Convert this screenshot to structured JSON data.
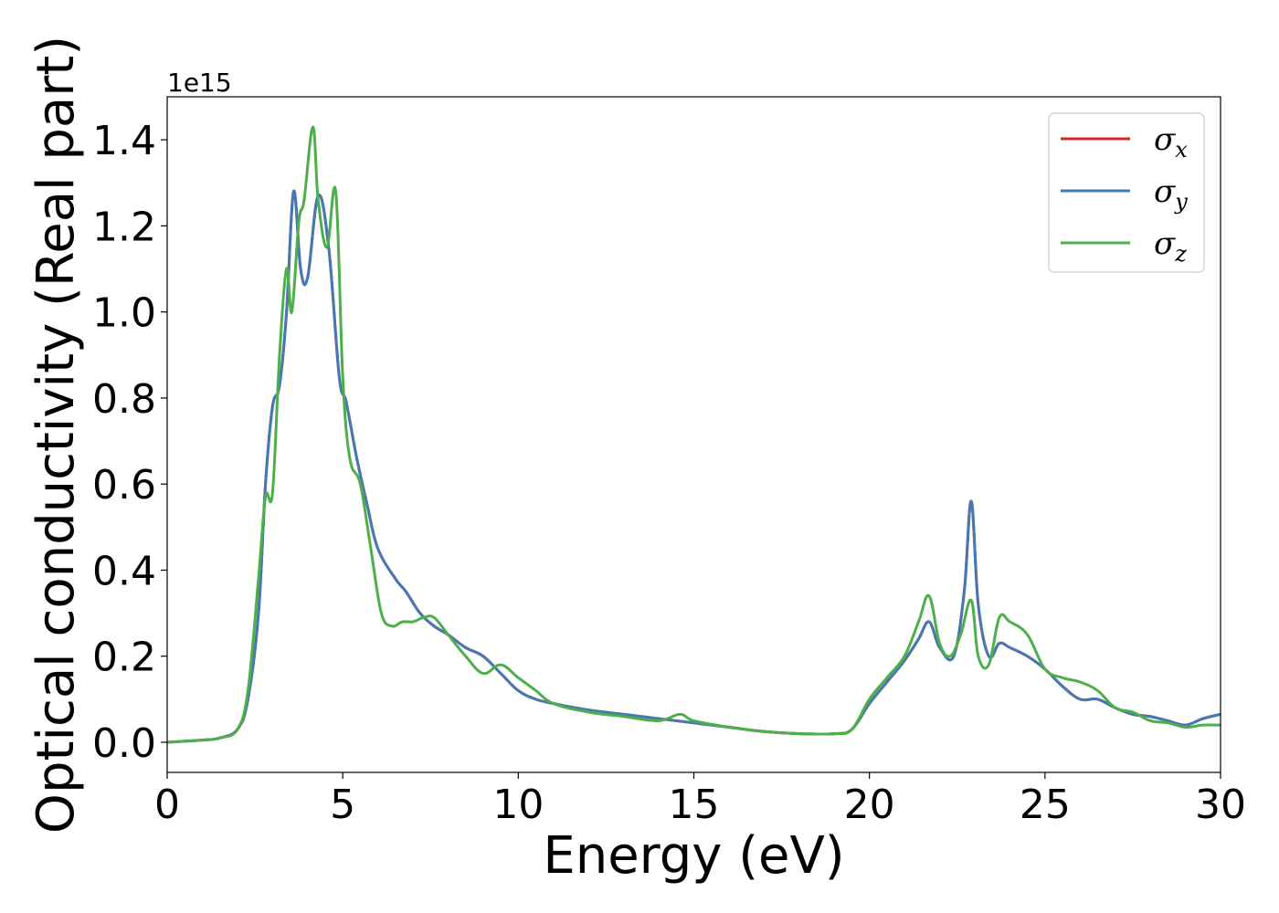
{
  "chart_data": {
    "type": "line",
    "title": "",
    "xlabel": "Energy (eV)",
    "ylabel": "Optical conductivity (Real part)",
    "y_offset_label": "1e15",
    "xlim": [
      0,
      30
    ],
    "ylim": [
      -0.07,
      1.5
    ],
    "grid": false,
    "legend_position": "top-right",
    "x_ticks": [
      0,
      5,
      10,
      15,
      20,
      25,
      30
    ],
    "x_tick_labels": [
      "0",
      "5",
      "10",
      "15",
      "20",
      "25",
      "30"
    ],
    "y_ticks": [
      0.0,
      0.2,
      0.4,
      0.6,
      0.8,
      1.0,
      1.2,
      1.4
    ],
    "y_tick_labels": [
      "0.0",
      "0.2",
      "0.4",
      "0.6",
      "0.8",
      "1.0",
      "1.2",
      "1.4"
    ],
    "series": [
      {
        "name": "σx",
        "legend_base": "σ",
        "legend_sub": "x",
        "color": "#d62728",
        "x": [
          0,
          1,
          1.5,
          2,
          2.3,
          2.6,
          2.8,
          3.0,
          3.2,
          3.4,
          3.6,
          3.8,
          4.0,
          4.3,
          4.6,
          4.9,
          5.1,
          5.4,
          5.7,
          6.0,
          6.5,
          6.8,
          7.2,
          7.6,
          8.0,
          8.5,
          9.0,
          9.5,
          10.0,
          10.5,
          11.0,
          12.0,
          13.0,
          14.0,
          15.0,
          16.0,
          17.0,
          18.0,
          19.0,
          19.5,
          20.0,
          20.5,
          21.0,
          21.4,
          21.7,
          22.0,
          22.4,
          22.7,
          22.9,
          23.1,
          23.4,
          23.7,
          24.0,
          24.5,
          25.0,
          25.5,
          26.0,
          26.5,
          27.0,
          27.5,
          28.0,
          28.5,
          29.0,
          29.5,
          30.0
        ],
        "values": [
          0.0,
          0.005,
          0.01,
          0.03,
          0.1,
          0.3,
          0.6,
          0.78,
          0.83,
          1.0,
          1.28,
          1.1,
          1.08,
          1.27,
          1.15,
          0.85,
          0.79,
          0.66,
          0.55,
          0.45,
          0.38,
          0.35,
          0.3,
          0.27,
          0.25,
          0.22,
          0.2,
          0.16,
          0.12,
          0.1,
          0.09,
          0.075,
          0.065,
          0.055,
          0.045,
          0.035,
          0.025,
          0.02,
          0.02,
          0.03,
          0.09,
          0.14,
          0.19,
          0.24,
          0.28,
          0.22,
          0.2,
          0.35,
          0.56,
          0.32,
          0.2,
          0.23,
          0.22,
          0.2,
          0.17,
          0.13,
          0.1,
          0.1,
          0.08,
          0.065,
          0.06,
          0.05,
          0.04,
          0.055,
          0.065
        ]
      },
      {
        "name": "σy",
        "legend_base": "σ",
        "legend_sub": "y",
        "color": "#4479b4",
        "x": [
          0,
          1,
          1.5,
          2,
          2.3,
          2.6,
          2.8,
          3.0,
          3.2,
          3.4,
          3.6,
          3.8,
          4.0,
          4.3,
          4.6,
          4.9,
          5.1,
          5.4,
          5.7,
          6.0,
          6.5,
          6.8,
          7.2,
          7.6,
          8.0,
          8.5,
          9.0,
          9.5,
          10.0,
          10.5,
          11.0,
          12.0,
          13.0,
          14.0,
          15.0,
          16.0,
          17.0,
          18.0,
          19.0,
          19.5,
          20.0,
          20.5,
          21.0,
          21.4,
          21.7,
          22.0,
          22.4,
          22.7,
          22.9,
          23.1,
          23.4,
          23.7,
          24.0,
          24.5,
          25.0,
          25.5,
          26.0,
          26.5,
          27.0,
          27.5,
          28.0,
          28.5,
          29.0,
          29.5,
          30.0
        ],
        "values": [
          0.0,
          0.005,
          0.01,
          0.03,
          0.1,
          0.3,
          0.6,
          0.78,
          0.83,
          1.0,
          1.28,
          1.1,
          1.08,
          1.27,
          1.15,
          0.85,
          0.79,
          0.66,
          0.55,
          0.45,
          0.38,
          0.35,
          0.3,
          0.27,
          0.25,
          0.22,
          0.2,
          0.16,
          0.12,
          0.1,
          0.09,
          0.075,
          0.065,
          0.055,
          0.045,
          0.035,
          0.025,
          0.02,
          0.02,
          0.03,
          0.09,
          0.14,
          0.19,
          0.24,
          0.28,
          0.22,
          0.2,
          0.35,
          0.56,
          0.32,
          0.2,
          0.23,
          0.22,
          0.2,
          0.17,
          0.13,
          0.1,
          0.1,
          0.08,
          0.065,
          0.06,
          0.05,
          0.04,
          0.055,
          0.065
        ]
      },
      {
        "name": "σz",
        "legend_base": "σ",
        "legend_sub": "z",
        "color": "#4daf4a",
        "x": [
          0,
          1,
          1.5,
          2,
          2.3,
          2.6,
          2.8,
          3.0,
          3.2,
          3.4,
          3.55,
          3.75,
          3.9,
          4.15,
          4.3,
          4.55,
          4.8,
          5.0,
          5.2,
          5.5,
          5.8,
          6.1,
          6.4,
          6.7,
          7.0,
          7.3,
          7.6,
          8.0,
          8.5,
          9.0,
          9.5,
          10.0,
          10.5,
          11.0,
          12.0,
          13.0,
          14.0,
          14.6,
          15.0,
          16.0,
          17.0,
          18.0,
          19.0,
          19.5,
          20.0,
          20.5,
          21.0,
          21.4,
          21.7,
          22.0,
          22.3,
          22.6,
          22.9,
          23.1,
          23.4,
          23.7,
          24.0,
          24.5,
          25.0,
          25.5,
          26.0,
          26.5,
          27.0,
          27.5,
          28.0,
          28.5,
          29.0,
          29.5,
          30.0
        ],
        "values": [
          0.0,
          0.005,
          0.01,
          0.03,
          0.12,
          0.38,
          0.57,
          0.58,
          0.9,
          1.1,
          1.0,
          1.21,
          1.26,
          1.43,
          1.26,
          1.15,
          1.28,
          0.85,
          0.66,
          0.6,
          0.45,
          0.3,
          0.27,
          0.28,
          0.28,
          0.29,
          0.29,
          0.25,
          0.2,
          0.16,
          0.18,
          0.15,
          0.12,
          0.09,
          0.07,
          0.06,
          0.05,
          0.065,
          0.05,
          0.035,
          0.025,
          0.02,
          0.02,
          0.03,
          0.1,
          0.15,
          0.2,
          0.28,
          0.34,
          0.23,
          0.2,
          0.25,
          0.33,
          0.2,
          0.18,
          0.29,
          0.28,
          0.25,
          0.17,
          0.15,
          0.14,
          0.12,
          0.08,
          0.07,
          0.05,
          0.045,
          0.035,
          0.04,
          0.04
        ]
      }
    ]
  }
}
